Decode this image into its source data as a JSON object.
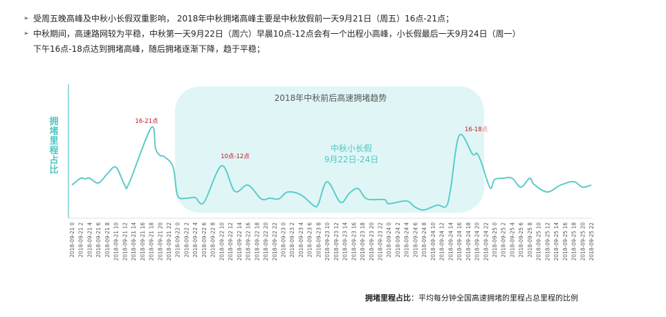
{
  "bullets": [
    {
      "icon": "arrow-bullet-icon",
      "text": "受周五晚高峰及中秋小长假双重影响， 2018年中秋拥堵高峰主要是中秋放假前一天9月21日（周五）16点-21点；"
    },
    {
      "icon": "arrow-bullet-icon",
      "text": "中秋期间，高速路网较为平稳，中秋第一天9月22日（周六）早晨10点-12点会有一个出程小高峰，小长假最后一天9月24日（周一）",
      "continuation": "下午16点-18点达到拥堵高峰，随后拥堵逐渐下降，趋于平稳；"
    }
  ],
  "footer": {
    "term": "拥堵里程占比",
    "definition": "：平均每分钟全国高速拥堵的里程占总里程的比例"
  },
  "colors": {
    "line": "#5ccbc9",
    "highlight_box": "#e0f6f6",
    "annotation": "#c0121e",
    "holiday_text": "#4fc4c4",
    "axis": "#5bc5c8"
  },
  "chart_data": {
    "type": "line",
    "title": "2018年中秋前后高速拥堵趋势",
    "ylabel": "拥堵里程占比",
    "xlabel": "",
    "grid": false,
    "y_ticks_shown": false,
    "highlight_region": {
      "from": "2018-09-22 0",
      "to": "2018-09-24 22",
      "label_line1": "中秋小长假",
      "label_line2": "9月22日-24日"
    },
    "annotations": [
      {
        "text": "16-21点",
        "x": "2018-09-21 18"
      },
      {
        "text": "10点-12点",
        "x": "2018-09-22 10"
      },
      {
        "text": "16-18",
        "suffix": "点",
        "x": "2018-09-24 16"
      }
    ],
    "x_tick_labels": [
      "2018-09-21 0",
      "2018-09-21 2",
      "2018-09-21 4",
      "2018-09-21 6",
      "2018-09-21 8",
      "2018-09-21 10",
      "2018-09-21 12",
      "2018-09-21 14",
      "2018-09-21 16",
      "2018-09-21 18",
      "2018-09-21 20",
      "2018-09-21 22",
      "2018-09-22 0",
      "2018-09-22 2",
      "2018-09-22 4",
      "2018-09-22 6",
      "2018-09-22 8",
      "2018-09-22 10",
      "2018-09-22 12",
      "2018-09-22 14",
      "2018-09-22 16",
      "2018-09-22 18",
      "2018-09-22 20",
      "2018-09-22 22",
      "2018-09-23 0",
      "2018-09-23 2",
      "2018-09-23 4",
      "2018-09-23 6",
      "2018-09-23 8",
      "2018-09-23 10",
      "2018-09-23 12",
      "2018-09-23 14",
      "2018-09-23 16",
      "2018-09-23 18",
      "2018-09-23 20",
      "2018-09-23 22",
      "2018-09-24 0",
      "2018-09-24 2",
      "2018-09-24 4",
      "2018-09-24 6",
      "2018-09-24 8",
      "2018-09-24 10",
      "2018-09-24 12",
      "2018-09-24 14",
      "2018-09-24 16",
      "2018-09-24 18",
      "2018-09-24 20",
      "2018-09-24 22",
      "2018-09-25 0",
      "2018-09-25 2",
      "2018-09-25 4",
      "2018-09-25 6",
      "2018-09-25 8",
      "2018-09-25 10",
      "2018-09-25 12",
      "2018-09-25 14",
      "2018-09-25 16",
      "2018-09-25 18",
      "2018-09-25 20",
      "2018-09-25 22"
    ],
    "ylim": [
      0,
      130
    ],
    "series": [
      {
        "points": [
          [
            "2018-09-21 0",
            42
          ],
          [
            "2018-09-21 2",
            52
          ],
          [
            "2018-09-21 3",
            51
          ],
          [
            "2018-09-21 4",
            52
          ],
          [
            "2018-09-21 6",
            45
          ],
          [
            "2018-09-21 8",
            58
          ],
          [
            "2018-09-21 10",
            68
          ],
          [
            "2018-09-21 12",
            42
          ],
          [
            "2018-09-21 13",
            45
          ],
          [
            "2018-09-21 18",
            125
          ],
          [
            "2018-09-21 19",
            95
          ],
          [
            "2018-09-21 20",
            85
          ],
          [
            "2018-09-21 21",
            83
          ],
          [
            "2018-09-21 23",
            68
          ],
          [
            "2018-09-22 0",
            27
          ],
          [
            "2018-09-22 2",
            23
          ],
          [
            "2018-09-22 4",
            24
          ],
          [
            "2018-09-22 6",
            17
          ],
          [
            "2018-09-22 10",
            70
          ],
          [
            "2018-09-22 13",
            33
          ],
          [
            "2018-09-22 16",
            42
          ],
          [
            "2018-09-22 19",
            22
          ],
          [
            "2018-09-22 21",
            23
          ],
          [
            "2018-09-22 23",
            22
          ],
          [
            "2018-09-23 1",
            32
          ],
          [
            "2018-09-23 4",
            28
          ],
          [
            "2018-09-23 7",
            12
          ],
          [
            "2018-09-23 8",
            15
          ],
          [
            "2018-09-23 10",
            47
          ],
          [
            "2018-09-23 13",
            17
          ],
          [
            "2018-09-23 15",
            30
          ],
          [
            "2018-09-23 17",
            37
          ],
          [
            "2018-09-23 19",
            22
          ],
          [
            "2018-09-23 23",
            21
          ],
          [
            "2018-09-24 0",
            15
          ],
          [
            "2018-09-24 4",
            19
          ],
          [
            "2018-09-24 6",
            10
          ],
          [
            "2018-09-24 8",
            6
          ],
          [
            "2018-09-24 11",
            13
          ],
          [
            "2018-09-24 13",
            11
          ],
          [
            "2018-09-24 14",
            35
          ],
          [
            "2018-09-24 16",
            114
          ],
          [
            "2018-09-24 19",
            87
          ],
          [
            "2018-09-24 20",
            88
          ],
          [
            "2018-09-24 21",
            75
          ],
          [
            "2018-09-24 23",
            38
          ],
          [
            "2018-09-25 0",
            50
          ],
          [
            "2018-09-25 2",
            52
          ],
          [
            "2018-09-25 4",
            52
          ],
          [
            "2018-09-25 6",
            39
          ],
          [
            "2018-09-25 8",
            52
          ],
          [
            "2018-09-25 9",
            43
          ],
          [
            "2018-09-25 12",
            32
          ],
          [
            "2018-09-25 15",
            42
          ],
          [
            "2018-09-25 18",
            47
          ],
          [
            "2018-09-25 20",
            39
          ],
          [
            "2018-09-25 22",
            42
          ]
        ]
      }
    ]
  }
}
